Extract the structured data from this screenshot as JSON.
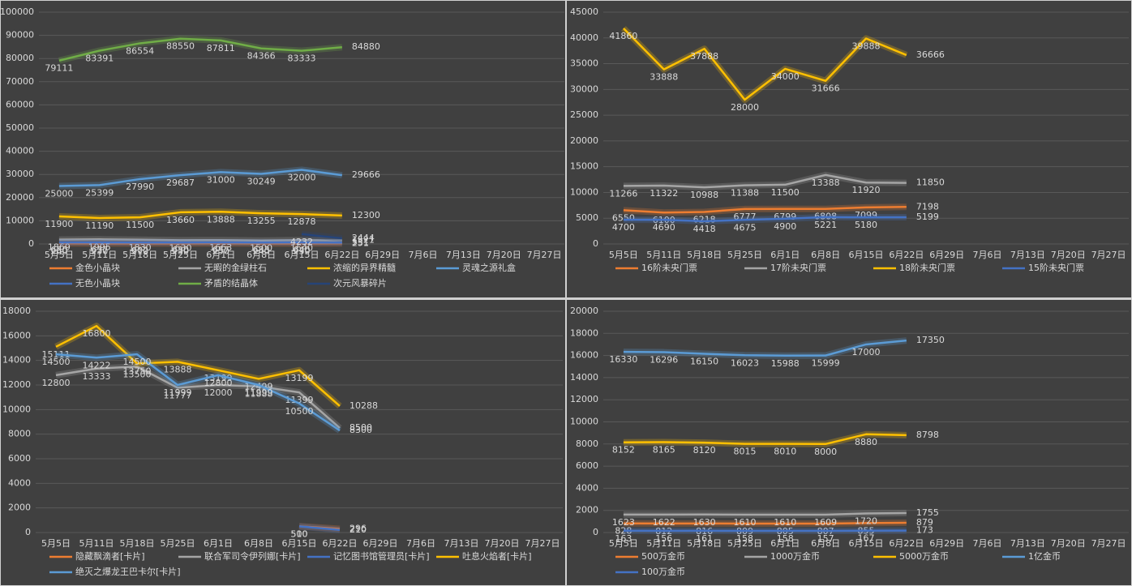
{
  "chart_data": [
    {
      "type": "line",
      "categories": [
        "5月5日",
        "5月11日",
        "5月18日",
        "5月25日",
        "6月1日",
        "6月8日",
        "6月15日",
        "6月22日",
        "6月29日",
        "7月6日",
        "7月13日",
        "7月20日",
        "7月27日"
      ],
      "ylim": [
        0,
        100000
      ],
      "yticks": [
        0,
        10000,
        20000,
        30000,
        40000,
        50000,
        60000,
        70000,
        80000,
        90000,
        100000
      ],
      "grid": true,
      "series": [
        {
          "name": "金色小晶块",
          "color": "#ed7d31",
          "values": [
            260,
            230,
            210,
            230,
            250,
            240,
            230,
            251,
            null,
            null,
            null,
            null,
            null
          ]
        },
        {
          "name": "无暇的金绿柱石",
          "color": "#a5a5a5",
          "values": [
            1869,
            1995,
            1830,
            1630,
            1663,
            1500,
            1640,
            1521,
            null,
            null,
            null,
            null,
            null
          ]
        },
        {
          "name": "浓缩的异界精髓",
          "color": "#ffc000",
          "values": [
            11900,
            11190,
            11500,
            13660,
            13888,
            13255,
            12878,
            12300,
            null,
            null,
            null,
            null,
            null
          ]
        },
        {
          "name": "灵魂之源礼盒",
          "color": "#5b9bd5",
          "values": [
            25000,
            25399,
            27990,
            29687,
            31000,
            30249,
            32000,
            29666,
            null,
            null,
            null,
            null,
            null
          ]
        },
        {
          "name": "无色小晶块",
          "color": "#4472c4",
          "values": [
            650,
            637,
            602,
            630,
            657,
            633,
            640,
            551,
            null,
            null,
            null,
            null,
            null
          ]
        },
        {
          "name": "矛盾的结晶体",
          "color": "#70ad47",
          "values": [
            79111,
            83391,
            86554,
            88550,
            87811,
            84366,
            83333,
            84880,
            null,
            null,
            null,
            null,
            null
          ]
        },
        {
          "name": "次元风暴碎片",
          "color": "#264478",
          "values": [
            null,
            null,
            null,
            null,
            null,
            null,
            4232,
            2444,
            null,
            null,
            null,
            null,
            null
          ]
        }
      ]
    },
    {
      "type": "line",
      "categories": [
        "5月5日",
        "5月11日",
        "5月18日",
        "5月25日",
        "6月1日",
        "6月8日",
        "6月15日",
        "6月22日",
        "6月29日",
        "7月6日",
        "7月13日",
        "7月20日",
        "7月27日"
      ],
      "ylim": [
        0,
        45000
      ],
      "yticks": [
        0,
        5000,
        10000,
        15000,
        20000,
        25000,
        30000,
        35000,
        40000,
        45000
      ],
      "grid": true,
      "series": [
        {
          "name": "16阶未央门票",
          "color": "#ed7d31",
          "values": [
            6550,
            6100,
            6218,
            6777,
            6799,
            6808,
            7099,
            7198,
            null,
            null,
            null,
            null,
            null
          ]
        },
        {
          "name": "17阶未央门票",
          "color": "#a5a5a5",
          "values": [
            11266,
            11322,
            10988,
            11388,
            11500,
            13388,
            11920,
            11850,
            null,
            null,
            null,
            null,
            null
          ]
        },
        {
          "name": "18阶未央门票",
          "color": "#ffc000",
          "values": [
            41860,
            33888,
            37888,
            28000,
            34000,
            31666,
            39888,
            36666,
            null,
            null,
            null,
            null,
            null
          ]
        },
        {
          "name": "15阶未央门票",
          "color": "#4472c4",
          "values": [
            4700,
            4690,
            4418,
            4675,
            4900,
            5221,
            5180,
            5199,
            null,
            null,
            null,
            null,
            null
          ]
        }
      ]
    },
    {
      "type": "line",
      "categories": [
        "5月5日",
        "5月11日",
        "5月18日",
        "5月25日",
        "6月1日",
        "6月8日",
        "6月15日",
        "6月22日",
        "6月29日",
        "7月6日",
        "7月13日",
        "7月20日",
        "7月27日"
      ],
      "ylim": [
        0,
        18000
      ],
      "yticks": [
        0,
        2000,
        4000,
        6000,
        8000,
        10000,
        12000,
        14000,
        16000,
        18000
      ],
      "grid": true,
      "series": [
        {
          "name": "隐藏飘滴者[卡片]",
          "color": "#ed7d31",
          "values": [
            null,
            null,
            null,
            null,
            null,
            null,
            510,
            296,
            null,
            null,
            null,
            null,
            null
          ]
        },
        {
          "name": "联合军司令伊列娜[卡片]",
          "color": "#a5a5a5",
          "values": [
            12800,
            13333,
            13500,
            11777,
            12000,
            11888,
            11399,
            8500,
            null,
            null,
            null,
            null,
            null
          ]
        },
        {
          "name": "记忆图书馆管理员[卡片]",
          "color": "#4472c4",
          "values": [
            null,
            null,
            null,
            null,
            null,
            null,
            500,
            210,
            null,
            null,
            null,
            null,
            null
          ]
        },
        {
          "name": "吐息火焰者[卡片]",
          "color": "#ffc000",
          "values": [
            15111,
            16800,
            13750,
            13888,
            13199,
            12499,
            13199,
            10288,
            null,
            null,
            null,
            null,
            null
          ]
        },
        {
          "name": "绝灭之爆龙王巴卡尔[卡片]",
          "color": "#5b9bd5",
          "values": [
            14500,
            14222,
            14500,
            11999,
            12800,
            11999,
            10500,
            8300,
            null,
            null,
            null,
            null,
            null
          ]
        }
      ]
    },
    {
      "type": "line",
      "categories": [
        "5月5日",
        "5月11日",
        "5月18日",
        "5月25日",
        "6月1日",
        "6月8日",
        "6月15日",
        "6月22日",
        "6月29日",
        "7月6日",
        "7月13日",
        "7月20日",
        "7月27日"
      ],
      "ylim": [
        0,
        20000
      ],
      "yticks": [
        0,
        2000,
        4000,
        6000,
        8000,
        10000,
        12000,
        14000,
        16000,
        18000,
        20000
      ],
      "grid": true,
      "series": [
        {
          "name": "500万金币",
          "color": "#ed7d31",
          "values": [
            828,
            812,
            816,
            809,
            805,
            807,
            855,
            879,
            null,
            null,
            null,
            null,
            null
          ]
        },
        {
          "name": "1000万金币",
          "color": "#a5a5a5",
          "values": [
            1623,
            1622,
            1630,
            1610,
            1610,
            1609,
            1720,
            1755,
            null,
            null,
            null,
            null,
            null
          ]
        },
        {
          "name": "5000万金币",
          "color": "#ffc000",
          "values": [
            8152,
            8165,
            8120,
            8015,
            8010,
            8000,
            8880,
            8798,
            null,
            null,
            null,
            null,
            null
          ]
        },
        {
          "name": "1亿金币",
          "color": "#5b9bd5",
          "values": [
            16330,
            16296,
            16150,
            16023,
            15988,
            15999,
            17000,
            17350,
            null,
            null,
            null,
            null,
            null
          ]
        },
        {
          "name": "100万金币",
          "color": "#4472c4",
          "values": [
            163,
            156,
            161,
            158,
            158,
            157,
            167,
            173,
            null,
            null,
            null,
            null,
            null
          ]
        }
      ]
    }
  ]
}
